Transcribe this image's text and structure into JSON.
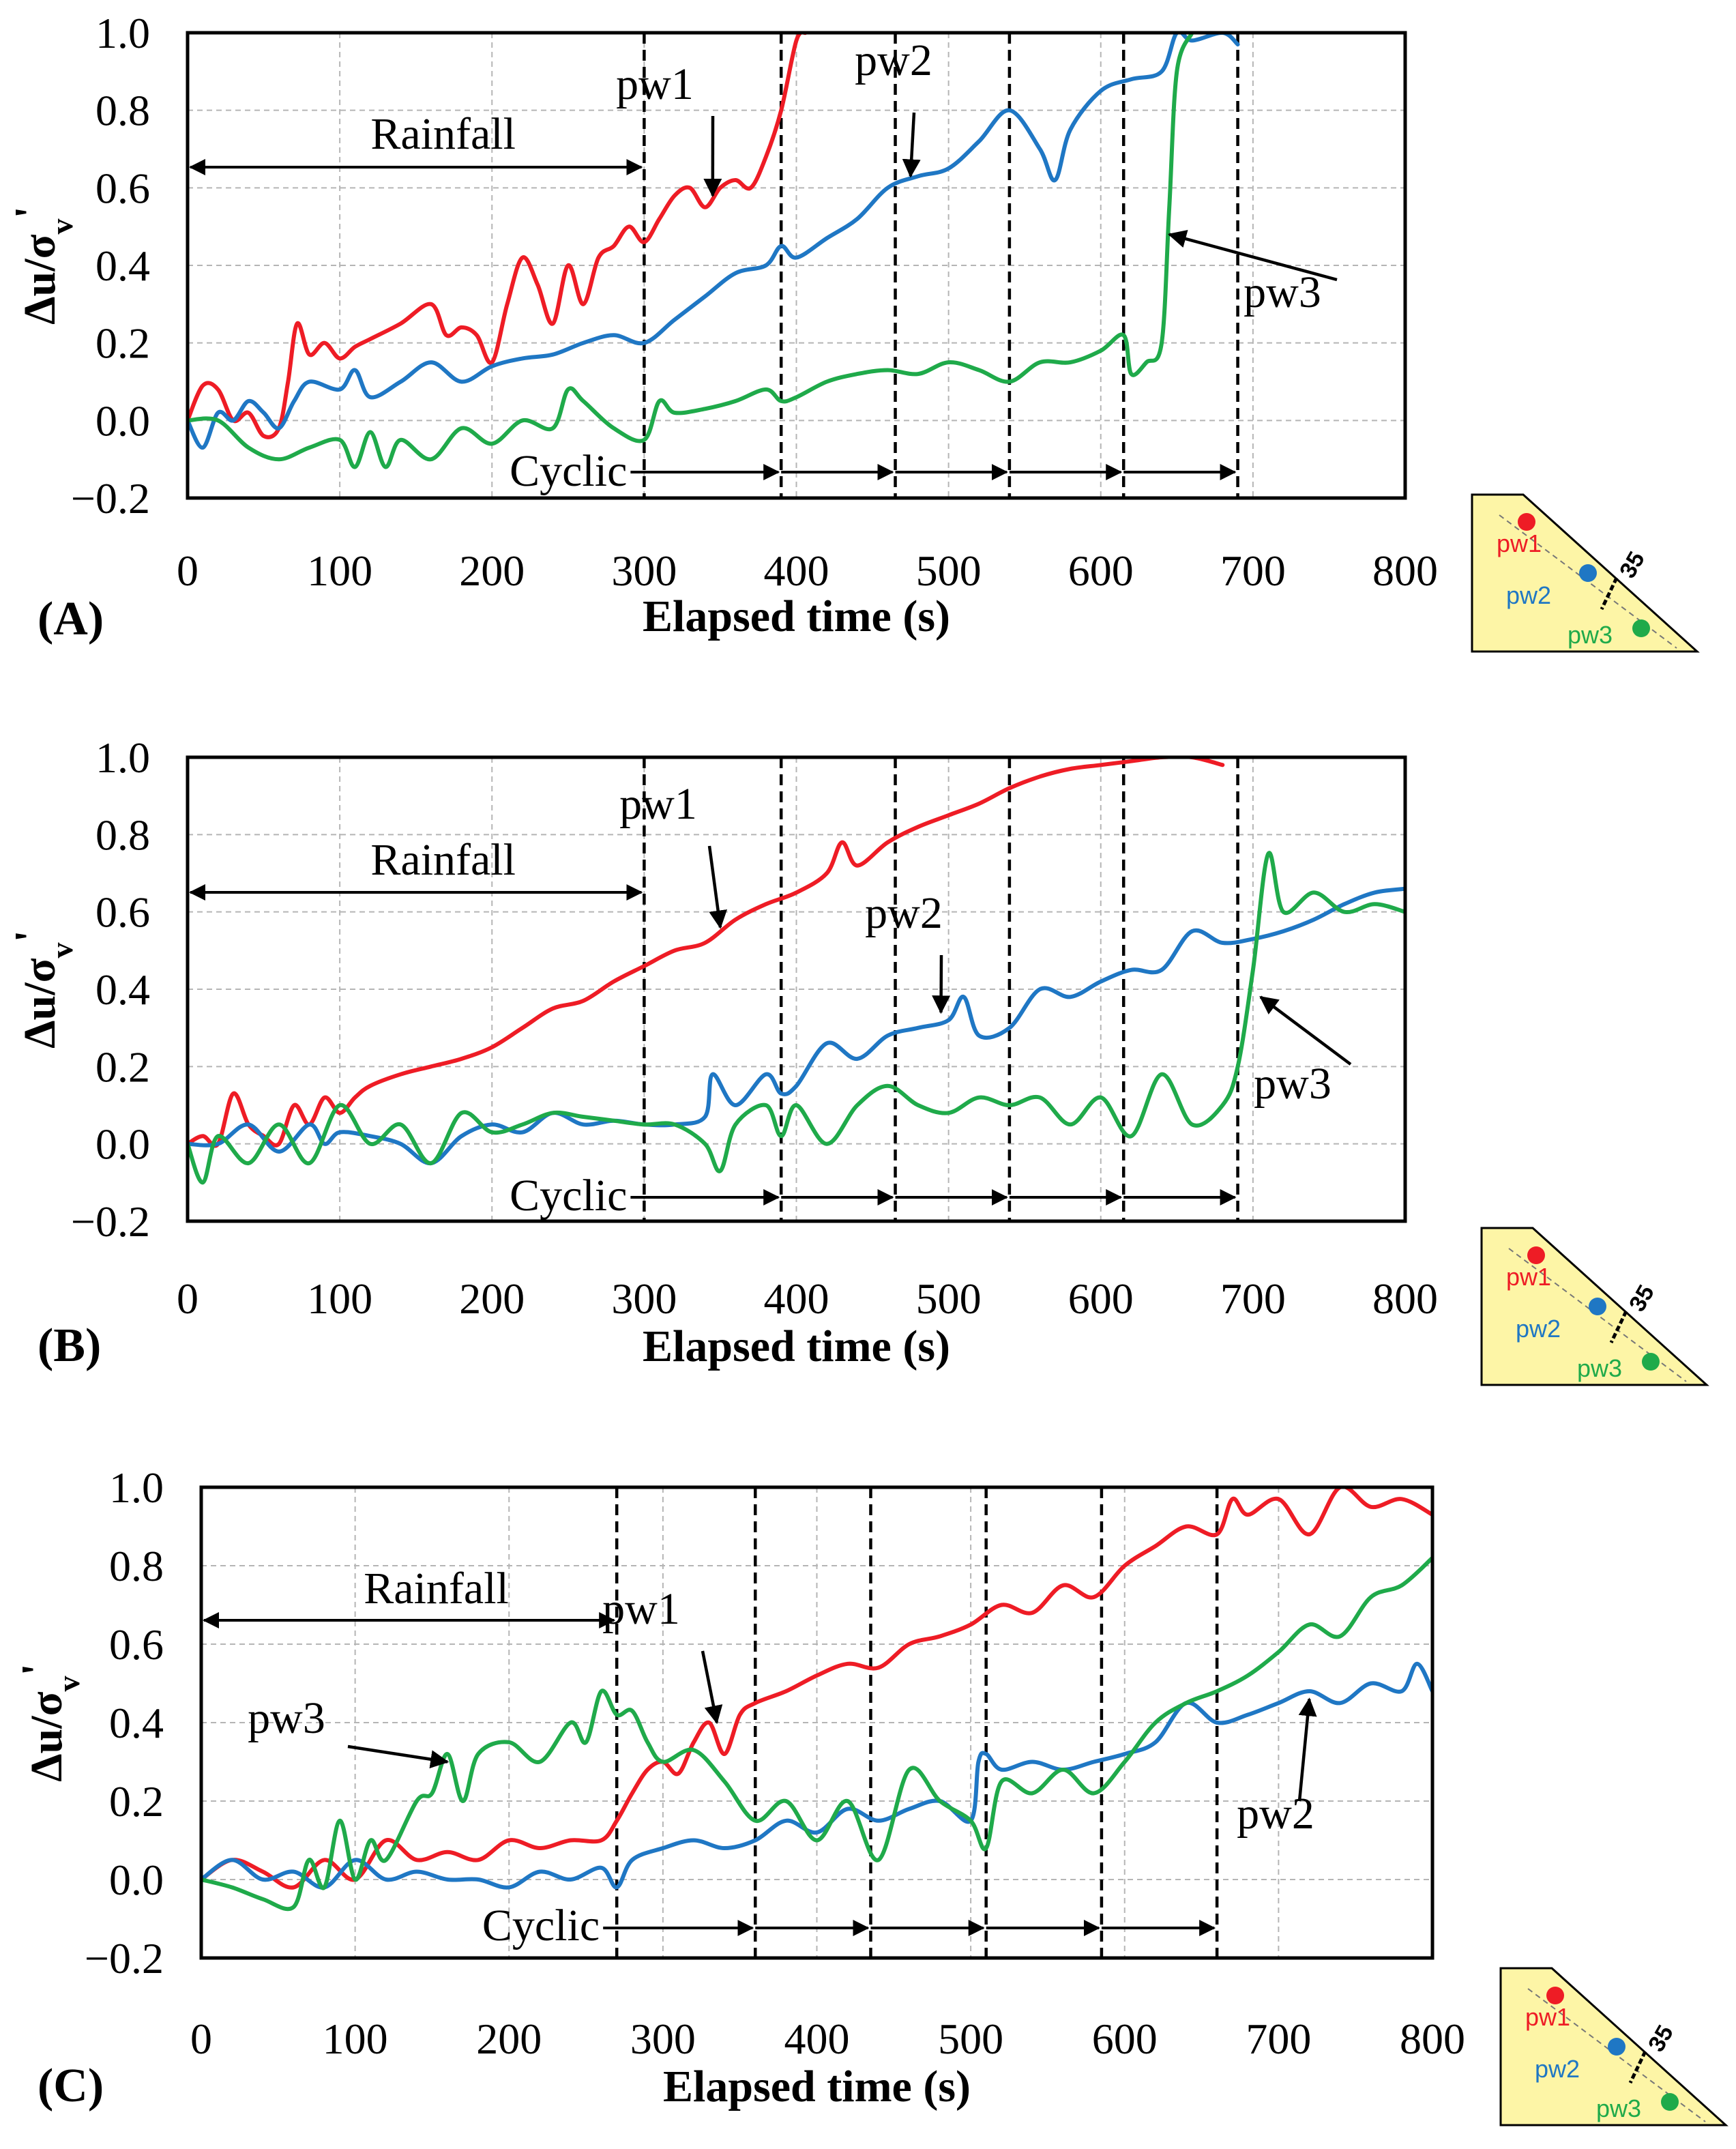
{
  "colors": {
    "pw1": "#ee1c25",
    "pw2": "#1f77c4",
    "pw3": "#1faa4a",
    "inset_fill": "#fdf5a6"
  },
  "inset": {
    "labels": [
      "pw1",
      "pw2",
      "pw3"
    ],
    "angle_label": "35"
  },
  "chart_data": [
    {
      "type": "line",
      "panel_label": "(A)",
      "xlabel": "Elapsed time (s)",
      "ylabel": "Δu/σv'",
      "xlim": [
        0,
        800
      ],
      "ylim": [
        -0.2,
        1.0
      ],
      "x_ticks": [
        0,
        100,
        200,
        300,
        400,
        500,
        600,
        700,
        800
      ],
      "y_ticks": [
        "1.0",
        "0.8",
        "0.6",
        "0.4",
        "0.2",
        "0.0",
        "−0.2"
      ],
      "phase_boundaries": [
        300,
        390,
        465,
        540,
        615,
        690
      ],
      "rainfall_label": "Rainfall",
      "cyclic_label": "Cyclic",
      "series": [
        {
          "name": "pw1",
          "color": "#ee1c25",
          "x": [
            0,
            10,
            20,
            30,
            40,
            50,
            60,
            66,
            72,
            80,
            90,
            100,
            110,
            120,
            140,
            160,
            170,
            180,
            190,
            200,
            210,
            220,
            230,
            240,
            250,
            260,
            270,
            280,
            290,
            300,
            310,
            320,
            330,
            340,
            350,
            360,
            370,
            380,
            390,
            400,
            406
          ],
          "y": [
            0.0,
            0.09,
            0.08,
            0.0,
            0.02,
            -0.04,
            -0.02,
            0.1,
            0.25,
            0.17,
            0.2,
            0.16,
            0.19,
            0.21,
            0.25,
            0.3,
            0.22,
            0.24,
            0.22,
            0.15,
            0.3,
            0.42,
            0.35,
            0.25,
            0.4,
            0.3,
            0.42,
            0.45,
            0.5,
            0.46,
            0.52,
            0.58,
            0.6,
            0.55,
            0.6,
            0.62,
            0.6,
            0.68,
            0.8,
            0.98,
            1.0
          ]
        },
        {
          "name": "pw2",
          "color": "#1f77c4",
          "x": [
            0,
            10,
            20,
            30,
            40,
            50,
            60,
            70,
            80,
            100,
            110,
            120,
            140,
            160,
            180,
            200,
            220,
            240,
            260,
            280,
            300,
            320,
            340,
            360,
            380,
            390,
            400,
            420,
            440,
            460,
            480,
            500,
            520,
            540,
            560,
            570,
            580,
            600,
            620,
            640,
            650,
            660,
            680,
            690
          ],
          "y": [
            0.0,
            -0.07,
            0.02,
            0.0,
            0.05,
            0.02,
            -0.02,
            0.05,
            0.1,
            0.08,
            0.13,
            0.06,
            0.1,
            0.15,
            0.1,
            0.14,
            0.16,
            0.17,
            0.2,
            0.22,
            0.2,
            0.26,
            0.32,
            0.38,
            0.4,
            0.45,
            0.42,
            0.47,
            0.52,
            0.6,
            0.63,
            0.65,
            0.72,
            0.8,
            0.7,
            0.62,
            0.75,
            0.85,
            0.88,
            0.9,
            1.0,
            0.98,
            1.0,
            0.97
          ]
        },
        {
          "name": "pw3",
          "color": "#1faa4a",
          "x": [
            0,
            20,
            40,
            60,
            80,
            100,
            110,
            120,
            130,
            140,
            160,
            180,
            200,
            220,
            240,
            250,
            260,
            280,
            300,
            310,
            320,
            340,
            360,
            380,
            390,
            400,
            420,
            440,
            460,
            480,
            500,
            520,
            540,
            560,
            580,
            600,
            615,
            620,
            630,
            640,
            645,
            650,
            660
          ],
          "y": [
            0.0,
            0.0,
            -0.07,
            -0.1,
            -0.07,
            -0.05,
            -0.12,
            -0.03,
            -0.12,
            -0.05,
            -0.1,
            -0.02,
            -0.06,
            0.0,
            -0.02,
            0.08,
            0.05,
            -0.02,
            -0.05,
            0.05,
            0.02,
            0.03,
            0.05,
            0.08,
            0.05,
            0.06,
            0.1,
            0.12,
            0.13,
            0.12,
            0.15,
            0.13,
            0.1,
            0.15,
            0.15,
            0.18,
            0.22,
            0.12,
            0.15,
            0.2,
            0.55,
            0.9,
            1.0
          ]
        }
      ],
      "annotations": [
        {
          "text": "pw1",
          "series": "pw1",
          "x": 345,
          "y": 0.58
        },
        {
          "text": "pw2",
          "series": "pw2",
          "x": 475,
          "y": 0.63
        },
        {
          "text": "pw3",
          "series": "pw3",
          "x": 645,
          "y": 0.48
        }
      ]
    },
    {
      "type": "line",
      "panel_label": "(B)",
      "xlabel": "Elapsed time (s)",
      "ylabel": "Δu/σv'",
      "xlim": [
        0,
        800
      ],
      "ylim": [
        -0.2,
        1.0
      ],
      "x_ticks": [
        0,
        100,
        200,
        300,
        400,
        500,
        600,
        700,
        800
      ],
      "y_ticks": [
        "1.0",
        "0.8",
        "0.6",
        "0.4",
        "0.2",
        "0.0",
        "−0.2"
      ],
      "phase_boundaries": [
        300,
        390,
        465,
        540,
        615,
        690
      ],
      "rainfall_label": "Rainfall",
      "cyclic_label": "Cyclic",
      "series": [
        {
          "name": "pw1",
          "color": "#ee1c25",
          "x": [
            0,
            10,
            20,
            30,
            40,
            50,
            60,
            70,
            80,
            90,
            100,
            110,
            120,
            140,
            160,
            180,
            200,
            220,
            240,
            260,
            280,
            300,
            320,
            340,
            360,
            380,
            400,
            420,
            430,
            440,
            460,
            480,
            500,
            520,
            540,
            560,
            580,
            600,
            620,
            640,
            660,
            680
          ],
          "y": [
            0.0,
            0.02,
            0.0,
            0.13,
            0.05,
            0.02,
            0.0,
            0.1,
            0.05,
            0.12,
            0.08,
            0.12,
            0.15,
            0.18,
            0.2,
            0.22,
            0.25,
            0.3,
            0.35,
            0.37,
            0.42,
            0.46,
            0.5,
            0.52,
            0.58,
            0.62,
            0.65,
            0.7,
            0.78,
            0.72,
            0.78,
            0.82,
            0.85,
            0.88,
            0.92,
            0.95,
            0.97,
            0.98,
            0.99,
            1.0,
            1.0,
            0.98
          ]
        },
        {
          "name": "pw2",
          "color": "#1f77c4",
          "x": [
            0,
            20,
            40,
            60,
            80,
            90,
            100,
            120,
            140,
            160,
            180,
            200,
            220,
            240,
            260,
            280,
            300,
            320,
            340,
            345,
            360,
            380,
            390,
            400,
            420,
            440,
            460,
            480,
            500,
            510,
            520,
            540,
            560,
            580,
            600,
            620,
            640,
            660,
            680,
            700,
            720,
            740,
            760,
            780,
            800
          ],
          "y": [
            0.0,
            0.0,
            0.05,
            -0.02,
            0.05,
            0.0,
            0.03,
            0.02,
            0.0,
            -0.05,
            0.02,
            0.05,
            0.03,
            0.08,
            0.05,
            0.06,
            0.05,
            0.05,
            0.07,
            0.18,
            0.1,
            0.18,
            0.13,
            0.15,
            0.26,
            0.22,
            0.28,
            0.3,
            0.32,
            0.38,
            0.28,
            0.3,
            0.4,
            0.38,
            0.42,
            0.45,
            0.45,
            0.55,
            0.52,
            0.53,
            0.55,
            0.58,
            0.62,
            0.65,
            0.66
          ]
        },
        {
          "name": "pw3",
          "color": "#1faa4a",
          "x": [
            0,
            10,
            20,
            40,
            60,
            80,
            100,
            120,
            140,
            160,
            180,
            200,
            220,
            240,
            260,
            280,
            300,
            320,
            340,
            350,
            360,
            380,
            390,
            400,
            420,
            440,
            460,
            480,
            500,
            520,
            540,
            560,
            580,
            600,
            620,
            640,
            660,
            680,
            690,
            700,
            710,
            720,
            740,
            760,
            780,
            800
          ],
          "y": [
            0.0,
            -0.1,
            0.02,
            -0.05,
            0.05,
            -0.05,
            0.1,
            0.0,
            0.05,
            -0.05,
            0.08,
            0.03,
            0.05,
            0.08,
            0.07,
            0.06,
            0.05,
            0.05,
            0.0,
            -0.07,
            0.05,
            0.1,
            0.02,
            0.1,
            0.0,
            0.1,
            0.15,
            0.1,
            0.08,
            0.12,
            0.1,
            0.12,
            0.05,
            0.12,
            0.02,
            0.18,
            0.05,
            0.1,
            0.2,
            0.45,
            0.75,
            0.6,
            0.65,
            0.6,
            0.62,
            0.6
          ]
        }
      ],
      "annotations": [
        {
          "text": "pw1",
          "series": "pw1",
          "x": 350,
          "y": 0.56
        },
        {
          "text": "pw2",
          "series": "pw2",
          "x": 495,
          "y": 0.34
        },
        {
          "text": "pw3",
          "series": "pw3",
          "x": 705,
          "y": 0.38
        }
      ]
    },
    {
      "type": "line",
      "panel_label": "(C)",
      "xlabel": "Elapsed time (s)",
      "ylabel": "Δu/σv'",
      "xlim": [
        0,
        800
      ],
      "ylim": [
        -0.2,
        1.0
      ],
      "x_ticks": [
        0,
        100,
        200,
        300,
        400,
        500,
        600,
        700,
        800
      ],
      "y_ticks": [
        "1.0",
        "0.8",
        "0.6",
        "0.4",
        "0.2",
        "0.0",
        "−0.2"
      ],
      "phase_boundaries": [
        270,
        360,
        435,
        510,
        585,
        660
      ],
      "rainfall_label": "Rainfall",
      "cyclic_label": "Cyclic",
      "series": [
        {
          "name": "pw1",
          "color": "#ee1c25",
          "x": [
            0,
            20,
            40,
            60,
            80,
            100,
            120,
            140,
            160,
            180,
            200,
            220,
            240,
            260,
            270,
            280,
            290,
            300,
            310,
            320,
            330,
            340,
            350,
            360,
            380,
            400,
            420,
            440,
            460,
            480,
            500,
            520,
            540,
            560,
            580,
            600,
            620,
            640,
            660,
            670,
            680,
            700,
            720,
            740,
            760,
            780,
            800
          ],
          "y": [
            0.0,
            0.05,
            0.02,
            -0.02,
            0.05,
            0.0,
            0.1,
            0.05,
            0.07,
            0.05,
            0.1,
            0.08,
            0.1,
            0.1,
            0.15,
            0.22,
            0.28,
            0.3,
            0.27,
            0.35,
            0.4,
            0.32,
            0.42,
            0.45,
            0.48,
            0.52,
            0.55,
            0.54,
            0.6,
            0.62,
            0.65,
            0.7,
            0.68,
            0.75,
            0.72,
            0.8,
            0.85,
            0.9,
            0.88,
            0.97,
            0.93,
            0.97,
            0.88,
            1.0,
            0.95,
            0.97,
            0.93
          ]
        },
        {
          "name": "pw2",
          "color": "#1f77c4",
          "x": [
            0,
            20,
            40,
            60,
            80,
            100,
            120,
            140,
            160,
            180,
            200,
            220,
            240,
            260,
            270,
            280,
            300,
            320,
            340,
            360,
            380,
            400,
            420,
            440,
            460,
            480,
            500,
            505,
            510,
            520,
            540,
            560,
            580,
            600,
            620,
            640,
            660,
            680,
            700,
            720,
            740,
            760,
            780,
            790,
            800
          ],
          "y": [
            0.0,
            0.05,
            0.0,
            0.02,
            -0.02,
            0.05,
            0.0,
            0.02,
            0.0,
            0.0,
            -0.02,
            0.02,
            0.0,
            0.03,
            -0.02,
            0.05,
            0.08,
            0.1,
            0.08,
            0.1,
            0.15,
            0.12,
            0.18,
            0.15,
            0.18,
            0.2,
            0.15,
            0.3,
            0.32,
            0.28,
            0.3,
            0.28,
            0.3,
            0.32,
            0.35,
            0.45,
            0.4,
            0.42,
            0.45,
            0.48,
            0.45,
            0.5,
            0.48,
            0.55,
            0.48
          ]
        },
        {
          "name": "pw3",
          "color": "#1faa4a",
          "x": [
            0,
            20,
            40,
            60,
            70,
            80,
            90,
            100,
            110,
            120,
            140,
            150,
            160,
            170,
            180,
            200,
            220,
            240,
            250,
            260,
            270,
            280,
            290,
            300,
            320,
            340,
            360,
            380,
            400,
            420,
            440,
            460,
            480,
            500,
            510,
            520,
            540,
            560,
            580,
            600,
            620,
            640,
            660,
            680,
            700,
            720,
            740,
            760,
            780,
            800
          ],
          "y": [
            0.0,
            -0.02,
            -0.05,
            -0.07,
            0.05,
            -0.02,
            0.15,
            0.0,
            0.1,
            0.05,
            0.2,
            0.22,
            0.32,
            0.2,
            0.32,
            0.35,
            0.3,
            0.4,
            0.35,
            0.48,
            0.42,
            0.43,
            0.35,
            0.3,
            0.33,
            0.25,
            0.15,
            0.2,
            0.1,
            0.2,
            0.05,
            0.28,
            0.2,
            0.15,
            0.08,
            0.25,
            0.22,
            0.28,
            0.22,
            0.3,
            0.4,
            0.45,
            0.48,
            0.52,
            0.58,
            0.65,
            0.62,
            0.72,
            0.75,
            0.82
          ]
        }
      ],
      "annotations": [
        {
          "text": "pw1",
          "series": "pw1",
          "x": 335,
          "y": 0.4
        },
        {
          "text": "pw3",
          "series": "pw3",
          "x": 160,
          "y": 0.3
        },
        {
          "text": "pw2",
          "series": "pw2",
          "x": 720,
          "y": 0.46
        }
      ]
    }
  ]
}
